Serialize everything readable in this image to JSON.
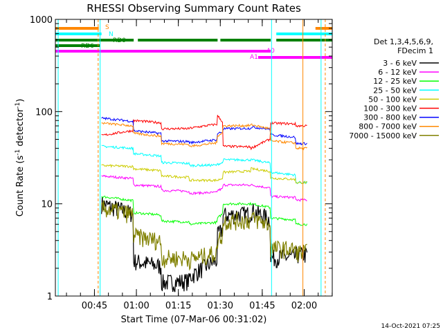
{
  "chart_data": {
    "type": "line",
    "title": "RHESSI Observing Summary Count Rates",
    "xlabel": "Start Time (07-Mar-06 00:31:02)",
    "ylabel_main": "Count Rate (s",
    "ylabel_sup1": "-1",
    "ylabel_mid": " detector",
    "ylabel_sup2": "-1",
    "ylabel_end": ")",
    "yscale": "log",
    "ylim": [
      1,
      1000
    ],
    "xlim_minutes": [
      0,
      99
    ],
    "y_ticks": [
      {
        "value": 1,
        "label": "1"
      },
      {
        "value": 10,
        "label": "10"
      },
      {
        "value": 100,
        "label": "100"
      },
      {
        "value": 1000,
        "label": "1000"
      }
    ],
    "x_ticks": [
      {
        "minute": 13.97,
        "label": "00:45"
      },
      {
        "minute": 28.97,
        "label": "01:00"
      },
      {
        "minute": 43.97,
        "label": "01:15"
      },
      {
        "minute": 58.97,
        "label": "01:30"
      },
      {
        "minute": 73.97,
        "label": "01:45"
      },
      {
        "minute": 88.97,
        "label": "02:00"
      }
    ],
    "legend_header": [
      "Det 1,3,4,5,6,9,",
      "FDecim 1"
    ],
    "series": [
      {
        "name": "3 - 6 keV",
        "color": "#000000",
        "level": [
          10,
          2.4,
          1.4,
          1.6,
          4.5,
          7.5,
          8.5,
          2.6,
          2.8
        ]
      },
      {
        "name": "6 - 12 keV",
        "color": "#ff00ff",
        "level": [
          20,
          16,
          14,
          13,
          14,
          16,
          16,
          12,
          11
        ]
      },
      {
        "name": "12 - 25 keV",
        "color": "#00ff00",
        "level": [
          12,
          8,
          6.5,
          6,
          7,
          10,
          10,
          7,
          6
        ]
      },
      {
        "name": "25 - 50 keV",
        "color": "#00ffff",
        "level": [
          42,
          35,
          28,
          26,
          27,
          30,
          30,
          22,
          17
        ]
      },
      {
        "name": "50 - 100 keV",
        "color": "#cccc00",
        "level": [
          26,
          24,
          20,
          18,
          18,
          22,
          24,
          19,
          17
        ]
      },
      {
        "name": "100 - 300 keV",
        "color": "#ff0000",
        "level": [
          55,
          80,
          65,
          66,
          90,
          42,
          40,
          75,
          70
        ]
      },
      {
        "name": "300 - 800 keV",
        "color": "#0000ff",
        "level": [
          85,
          62,
          48,
          46,
          58,
          65,
          68,
          56,
          45
        ]
      },
      {
        "name": "800 - 7000 keV",
        "color": "#ff8800",
        "level": [
          75,
          58,
          45,
          42,
          55,
          70,
          72,
          48,
          40
        ]
      },
      {
        "name": "7000 - 15000 keV",
        "color": "#808000",
        "level": [
          9,
          4.5,
          2.6,
          2.5,
          4,
          6.5,
          7,
          3.3,
          3
        ]
      }
    ],
    "flags": [
      {
        "name": "S",
        "color": "#ff8800",
        "segments": [
          [
            0,
            15.5
          ],
          [
            93,
            99
          ]
        ]
      },
      {
        "name": "N",
        "color": "#00ffff",
        "segments": [
          [
            0,
            16.5
          ],
          [
            79,
            99
          ]
        ]
      },
      {
        "name": "RD0",
        "color": "#008000",
        "segments": [
          [
            0,
            28
          ],
          [
            29.5,
            58
          ],
          [
            59,
            77
          ],
          [
            79,
            99
          ]
        ]
      },
      {
        "name": "RD6",
        "color": "#008000",
        "segments": [
          [
            0,
            16
          ]
        ]
      },
      {
        "name": "A0",
        "color": "#ff00ff",
        "segments": [
          [
            0,
            77
          ]
        ]
      },
      {
        "name": "A1",
        "color": "#ff00ff",
        "segments": [
          [
            72.5,
            99
          ]
        ]
      }
    ],
    "timestamp": "14-Oct-2021 07:25"
  }
}
